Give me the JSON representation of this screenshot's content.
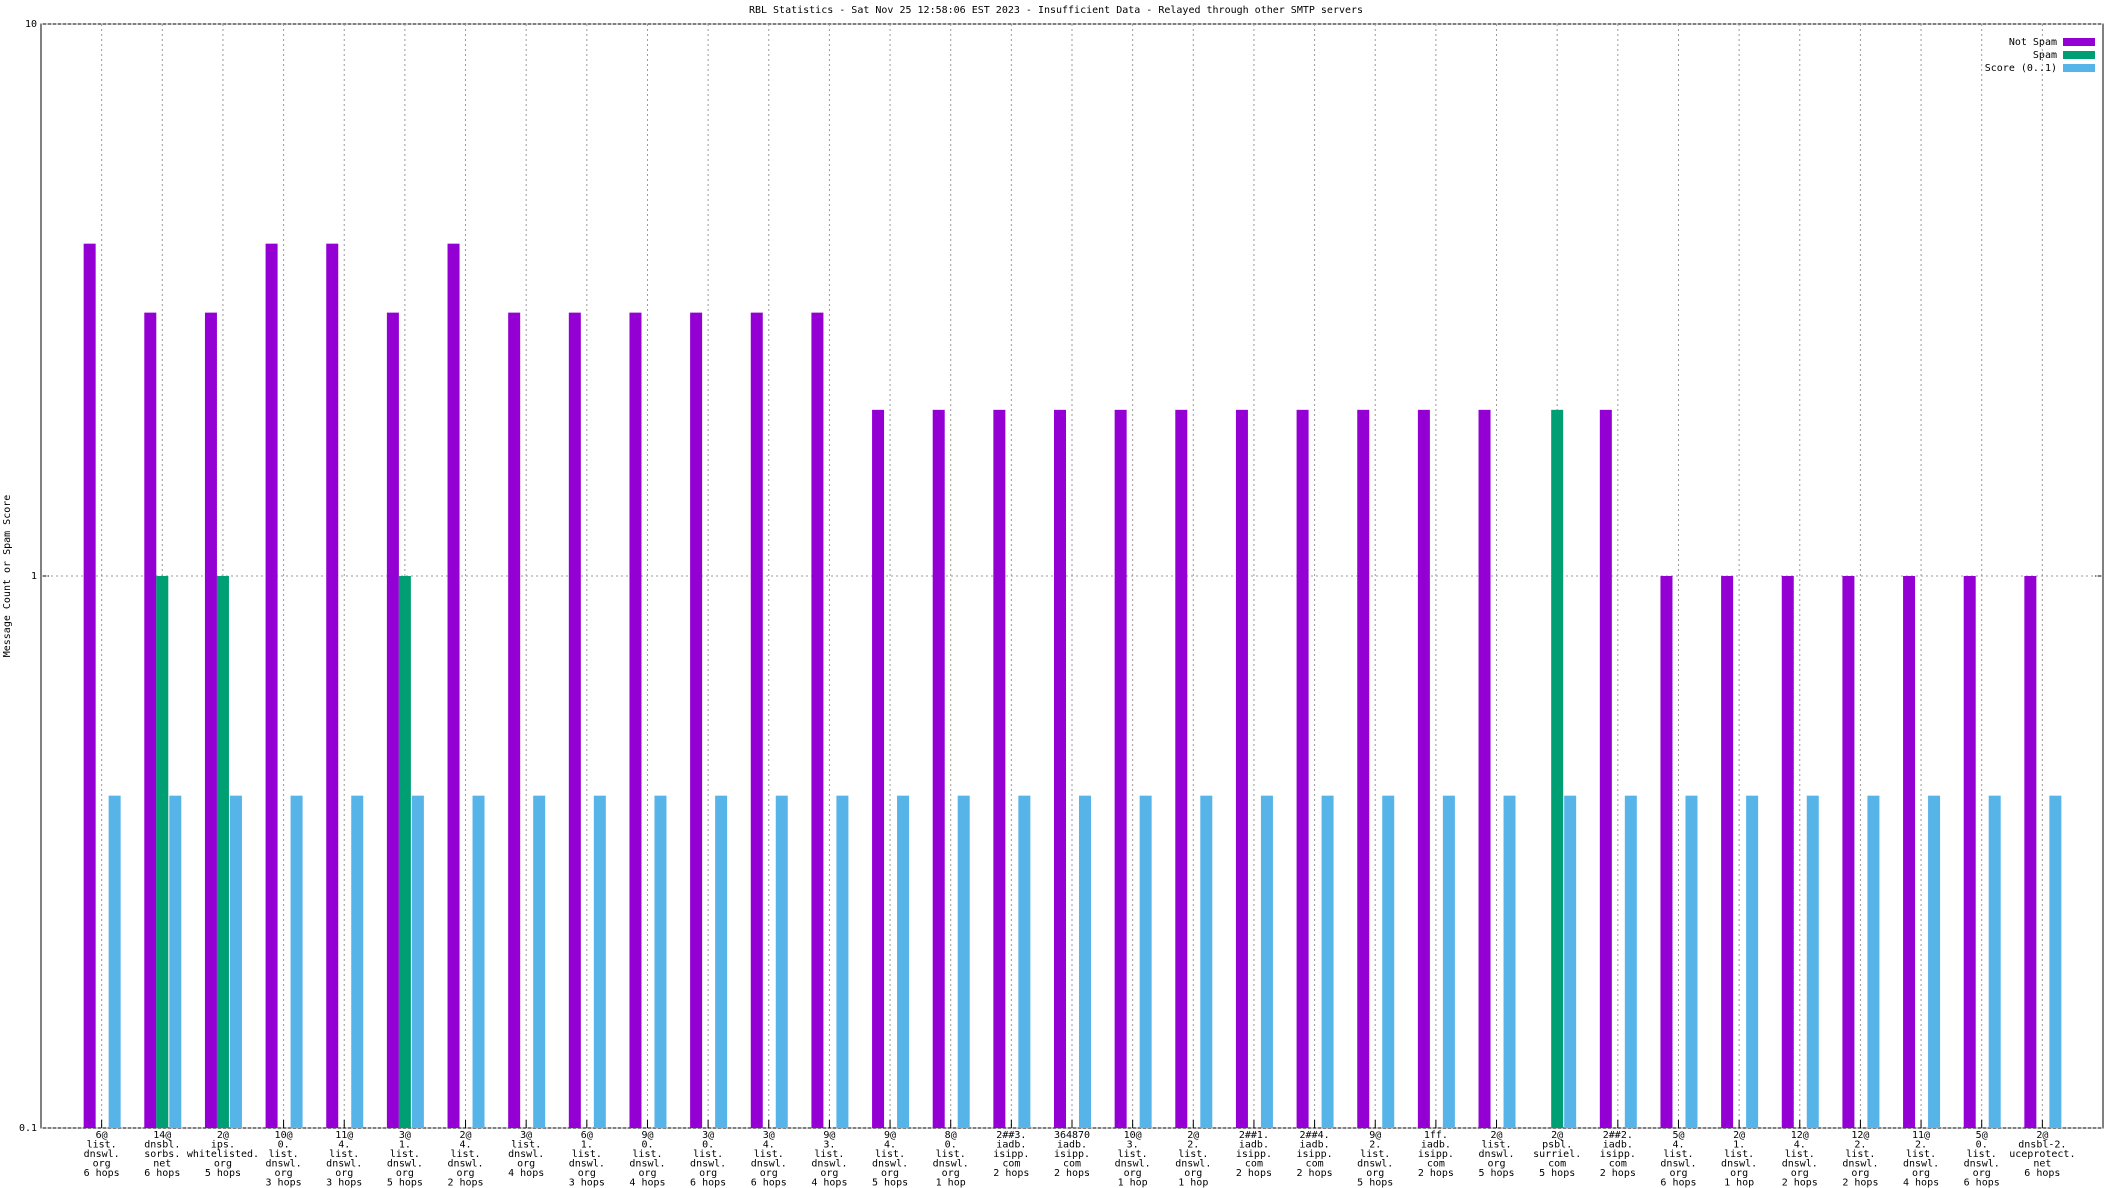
{
  "chart_data": {
    "type": "bar",
    "title": "RBL Statistics - Sat Nov 25 12:58:06 EST 2023 - Insufficient Data - Relayed through other SMTP servers",
    "y_label": "Message Count or Spam Score",
    "categories": [
      [
        "6@",
        "list.",
        "dnswl.",
        "org",
        "6 hops"
      ],
      [
        "14@",
        "dnsbl.",
        "sorbs.",
        "net",
        "6 hops"
      ],
      [
        "2@",
        "ips.",
        "whitelisted.",
        "org",
        "5 hops"
      ],
      [
        "10@",
        "0.",
        "list.",
        "dnswl.",
        "org",
        "3 hops"
      ],
      [
        "11@",
        "4.",
        "list.",
        "dnswl.",
        "org",
        "3 hops"
      ],
      [
        "3@",
        "1.",
        "list.",
        "dnswl.",
        "org",
        "5 hops"
      ],
      [
        "2@",
        "4.",
        "list.",
        "dnswl.",
        "org",
        "2 hops"
      ],
      [
        "3@",
        "list.",
        "dnswl.",
        "org",
        "4 hops"
      ],
      [
        "6@",
        "1.",
        "list.",
        "dnswl.",
        "org",
        "3 hops"
      ],
      [
        "9@",
        "0.",
        "list.",
        "dnswl.",
        "org",
        "4 hops"
      ],
      [
        "3@",
        "0.",
        "list.",
        "dnswl.",
        "org",
        "6 hops"
      ],
      [
        "3@",
        "4.",
        "list.",
        "dnswl.",
        "org",
        "6 hops"
      ],
      [
        "9@",
        "3.",
        "list.",
        "dnswl.",
        "org",
        "4 hops"
      ],
      [
        "9@",
        "4.",
        "list.",
        "dnswl.",
        "org",
        "5 hops"
      ],
      [
        "8@",
        "0.",
        "list.",
        "dnswl.",
        "org",
        "1 hop"
      ],
      [
        "2##3.",
        "iadb.",
        "isipp.",
        "com",
        "2 hops"
      ],
      [
        "364870",
        "iadb.",
        "isipp.",
        "com",
        "2 hops"
      ],
      [
        "10@",
        "3.",
        "list.",
        "dnswl.",
        "org",
        "1 hop"
      ],
      [
        "2@",
        "2.",
        "list.",
        "dnswl.",
        "org",
        "1 hop"
      ],
      [
        "2##1.",
        "iadb.",
        "isipp.",
        "com",
        "2 hops"
      ],
      [
        "2##4.",
        "iadb.",
        "isipp.",
        "com",
        "2 hops"
      ],
      [
        "9@",
        "2.",
        "list.",
        "dnswl.",
        "org",
        "5 hops"
      ],
      [
        "1ff.",
        "iadb.",
        "isipp.",
        "com",
        "2 hops"
      ],
      [
        "2@",
        "list.",
        "dnswl.",
        "org",
        "5 hops"
      ],
      [
        "2@",
        "psbl.",
        "surriel.",
        "com",
        "5 hops"
      ],
      [
        "2##2.",
        "iadb.",
        "isipp.",
        "com",
        "2 hops"
      ],
      [
        "5@",
        "4.",
        "list.",
        "dnswl.",
        "org",
        "6 hops"
      ],
      [
        "2@",
        "1.",
        "list.",
        "dnswl.",
        "org",
        "1 hop"
      ],
      [
        "12@",
        "4.",
        "list.",
        "dnswl.",
        "org",
        "2 hops"
      ],
      [
        "12@",
        "2.",
        "list.",
        "dnswl.",
        "org",
        "2 hops"
      ],
      [
        "11@",
        "2.",
        "list.",
        "dnswl.",
        "org",
        "4 hops"
      ],
      [
        "5@",
        "0.",
        "list.",
        "dnswl.",
        "org",
        "6 hops"
      ],
      [
        "2@",
        "dnsbl-2.",
        "uceprotect.",
        "net",
        "6 hops"
      ]
    ],
    "series": [
      {
        "name": "Not Spam",
        "color": "#9400d3",
        "values": [
          4,
          3,
          3,
          4,
          4,
          3,
          4,
          3,
          3,
          3,
          3,
          3,
          3,
          2,
          2,
          2,
          2,
          2,
          2,
          2,
          2,
          2,
          2,
          2,
          null,
          2,
          1,
          1,
          1,
          1,
          1,
          1,
          1
        ]
      },
      {
        "name": "Spam",
        "color": "#009e73",
        "values": [
          null,
          1,
          1,
          null,
          null,
          1,
          null,
          null,
          null,
          null,
          null,
          null,
          null,
          null,
          null,
          null,
          null,
          null,
          null,
          null,
          null,
          null,
          null,
          null,
          2,
          null,
          null,
          null,
          null,
          null,
          null,
          null,
          null
        ]
      },
      {
        "name": "Score (0..1)",
        "color": "#56b4e9",
        "values": [
          0.4,
          0.4,
          0.4,
          0.4,
          0.4,
          0.4,
          0.4,
          0.4,
          0.4,
          0.4,
          0.4,
          0.4,
          0.4,
          0.4,
          0.4,
          0.4,
          0.4,
          0.4,
          0.4,
          0.4,
          0.4,
          0.4,
          0.4,
          0.4,
          0.4,
          0.4,
          0.4,
          0.4,
          0.4,
          0.4,
          0.4,
          0.4,
          0.4
        ]
      }
    ],
    "ylim": [
      0.1,
      10
    ],
    "yticks": [
      0.1,
      1,
      10
    ],
    "log_y": true,
    "grid": true,
    "legend": "top-right"
  }
}
